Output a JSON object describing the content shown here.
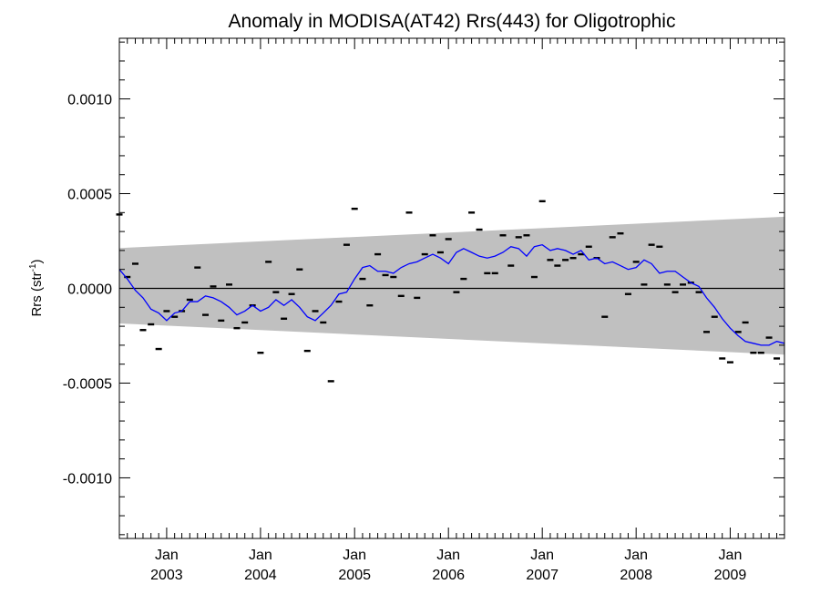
{
  "chart_data": {
    "type": "scatter",
    "title": "Anomaly in MODISA(AT42) Rrs(443) for Oligotrophic",
    "ylabel": "Rrs (str",
    "ylabel_sup": "-1",
    "ylabel_close": ")",
    "xlabel": "",
    "xlim": [
      "2002-07-01",
      "2009-07-31"
    ],
    "ylim": [
      -0.00132,
      0.00132
    ],
    "yticks": [
      -0.001,
      -0.0005,
      0.0,
      0.0005,
      0.001
    ],
    "ytick_labels": [
      "-0.0010",
      "-0.0005",
      "0.0000",
      "0.0005",
      "0.0010"
    ],
    "xticks": [
      "2003-01-01",
      "2004-01-01",
      "2005-01-01",
      "2006-01-01",
      "2007-01-01",
      "2008-01-01",
      "2009-01-01"
    ],
    "xtick_month_labels": [
      "Jan",
      "Jan",
      "Jan",
      "Jan",
      "Jan",
      "Jan",
      "Jan"
    ],
    "xtick_year_labels": [
      "2003",
      "2004",
      "2005",
      "2006",
      "2007",
      "2008",
      "2009"
    ],
    "grid": false,
    "zero_line": true,
    "colors": {
      "band": "#c0c0c0",
      "smoothed": "#0000ff",
      "points": "#000000",
      "zero_line": "#000000"
    },
    "band": {
      "x": [
        "2002-07-01",
        "2009-07-31"
      ],
      "upper": [
        0.000213,
        0.000378
      ],
      "lower": [
        -0.000185,
        -0.00035
      ]
    },
    "series": [
      {
        "kind": "points",
        "x": [
          "2002-07-01",
          "2002-08-01",
          "2002-09-01",
          "2002-10-01",
          "2002-11-01",
          "2002-12-01",
          "2003-01-01",
          "2003-02-01",
          "2003-03-01",
          "2003-04-01",
          "2003-05-01",
          "2003-06-01",
          "2003-07-01",
          "2003-08-01",
          "2003-09-01",
          "2003-10-01",
          "2003-11-01",
          "2003-12-01",
          "2004-01-01",
          "2004-02-01",
          "2004-03-01",
          "2004-04-01",
          "2004-05-01",
          "2004-06-01",
          "2004-07-01",
          "2004-08-01",
          "2004-09-01",
          "2004-10-01",
          "2004-11-01",
          "2004-12-01",
          "2005-01-01",
          "2005-02-01",
          "2005-03-01",
          "2005-04-01",
          "2005-05-01",
          "2005-06-01",
          "2005-07-01",
          "2005-08-01",
          "2005-09-01",
          "2005-10-01",
          "2005-11-01",
          "2005-12-01",
          "2006-01-01",
          "2006-02-01",
          "2006-03-01",
          "2006-04-01",
          "2006-05-01",
          "2006-06-01",
          "2006-07-01",
          "2006-08-01",
          "2006-09-01",
          "2006-10-01",
          "2006-11-01",
          "2006-12-01",
          "2007-01-01",
          "2007-02-01",
          "2007-03-01",
          "2007-04-01",
          "2007-05-01",
          "2007-06-01",
          "2007-07-01",
          "2007-08-01",
          "2007-09-01",
          "2007-10-01",
          "2007-11-01",
          "2007-12-01",
          "2008-01-01",
          "2008-02-01",
          "2008-03-01",
          "2008-04-01",
          "2008-05-01",
          "2008-06-01",
          "2008-07-01",
          "2008-08-01",
          "2008-09-01",
          "2008-10-01",
          "2008-11-01",
          "2008-12-01",
          "2009-01-01",
          "2009-02-01",
          "2009-03-01",
          "2009-04-01",
          "2009-05-01",
          "2009-06-01",
          "2009-07-01"
        ],
        "y": [
          0.00039,
          6e-05,
          0.00013,
          -0.00022,
          -0.00019,
          -0.00032,
          -0.00012,
          -0.00015,
          -0.00012,
          -6e-05,
          0.00011,
          -0.00014,
          1e-05,
          -0.00017,
          2e-05,
          -0.00021,
          -0.00018,
          -9e-05,
          -0.00034,
          0.00014,
          -2e-05,
          -0.00016,
          -3e-05,
          0.0001,
          -0.00033,
          -0.00012,
          -0.00018,
          -0.00049,
          -7e-05,
          0.00023,
          0.00042,
          5e-05,
          -9e-05,
          0.00018,
          7e-05,
          6e-05,
          -4e-05,
          0.0004,
          -5e-05,
          0.00018,
          0.00028,
          0.00019,
          0.00026,
          -2e-05,
          5e-05,
          0.0004,
          0.00031,
          8e-05,
          8e-05,
          0.00028,
          0.00012,
          0.00027,
          0.00028,
          6e-05,
          0.00046,
          0.00015,
          0.00012,
          0.00015,
          0.00016,
          0.00018,
          0.00022,
          0.00016,
          -0.00015,
          0.00027,
          0.00029,
          -3e-05,
          0.00014,
          2e-05,
          0.00023,
          0.00022,
          2e-05,
          -2e-05,
          2e-05,
          3e-05,
          -2e-05,
          -0.00023,
          -0.00015,
          -0.00037,
          -0.00039,
          -0.00023,
          -0.00018,
          -0.00034,
          -0.00034,
          -0.00026,
          -0.00037
        ]
      },
      {
        "kind": "line",
        "x": [
          "2002-07-01",
          "2002-08-01",
          "2002-09-01",
          "2002-10-01",
          "2002-11-01",
          "2002-12-01",
          "2003-01-01",
          "2003-02-01",
          "2003-03-01",
          "2003-04-01",
          "2003-05-01",
          "2003-06-01",
          "2003-07-01",
          "2003-08-01",
          "2003-09-01",
          "2003-10-01",
          "2003-11-01",
          "2003-12-01",
          "2004-01-01",
          "2004-02-01",
          "2004-03-01",
          "2004-04-01",
          "2004-05-01",
          "2004-06-01",
          "2004-07-01",
          "2004-08-01",
          "2004-09-01",
          "2004-10-01",
          "2004-11-01",
          "2004-12-01",
          "2005-01-01",
          "2005-02-01",
          "2005-03-01",
          "2005-04-01",
          "2005-05-01",
          "2005-06-01",
          "2005-07-01",
          "2005-08-01",
          "2005-09-01",
          "2005-10-01",
          "2005-11-01",
          "2005-12-01",
          "2006-01-01",
          "2006-02-01",
          "2006-03-01",
          "2006-04-01",
          "2006-05-01",
          "2006-06-01",
          "2006-07-01",
          "2006-08-01",
          "2006-09-01",
          "2006-10-01",
          "2006-11-01",
          "2006-12-01",
          "2007-01-01",
          "2007-02-01",
          "2007-03-01",
          "2007-04-01",
          "2007-05-01",
          "2007-06-01",
          "2007-07-01",
          "2007-08-01",
          "2007-09-01",
          "2007-10-01",
          "2007-11-01",
          "2007-12-01",
          "2008-01-01",
          "2008-02-01",
          "2008-03-01",
          "2008-04-01",
          "2008-05-01",
          "2008-06-01",
          "2008-07-01",
          "2008-08-01",
          "2008-09-01",
          "2008-10-01",
          "2008-11-01",
          "2008-12-01",
          "2009-01-01",
          "2009-02-01",
          "2009-03-01",
          "2009-04-01",
          "2009-05-01",
          "2009-06-01",
          "2009-07-01",
          "2009-07-31"
        ],
        "y": [
          0.0001,
          5e-05,
          -1e-05,
          -5e-05,
          -0.00011,
          -0.00013,
          -0.00017,
          -0.00013,
          -0.00012,
          -7e-05,
          -7e-05,
          -4e-05,
          -5e-05,
          -7e-05,
          -0.0001,
          -0.00014,
          -0.00012,
          -9e-05,
          -0.00012,
          -0.0001,
          -6e-05,
          -9e-05,
          -6e-05,
          -0.0001,
          -0.00015,
          -0.00017,
          -0.00013,
          -9e-05,
          -3e-05,
          -2e-05,
          5e-05,
          0.00011,
          0.00012,
          9e-05,
          9e-05,
          8e-05,
          0.00011,
          0.00013,
          0.00014,
          0.00016,
          0.00018,
          0.00016,
          0.00013,
          0.00019,
          0.00021,
          0.00019,
          0.00017,
          0.00016,
          0.00017,
          0.00019,
          0.00022,
          0.00021,
          0.00017,
          0.00022,
          0.00023,
          0.0002,
          0.00021,
          0.0002,
          0.00018,
          0.0002,
          0.00015,
          0.00016,
          0.00013,
          0.00014,
          0.00012,
          0.0001,
          0.00011,
          0.00015,
          0.00013,
          8e-05,
          9e-05,
          9e-05,
          6e-05,
          3e-05,
          1e-05,
          -5e-05,
          -0.0001,
          -0.00016,
          -0.00021,
          -0.00025,
          -0.00028,
          -0.00029,
          -0.0003,
          -0.0003,
          -0.00028,
          -0.00029
        ]
      }
    ]
  }
}
